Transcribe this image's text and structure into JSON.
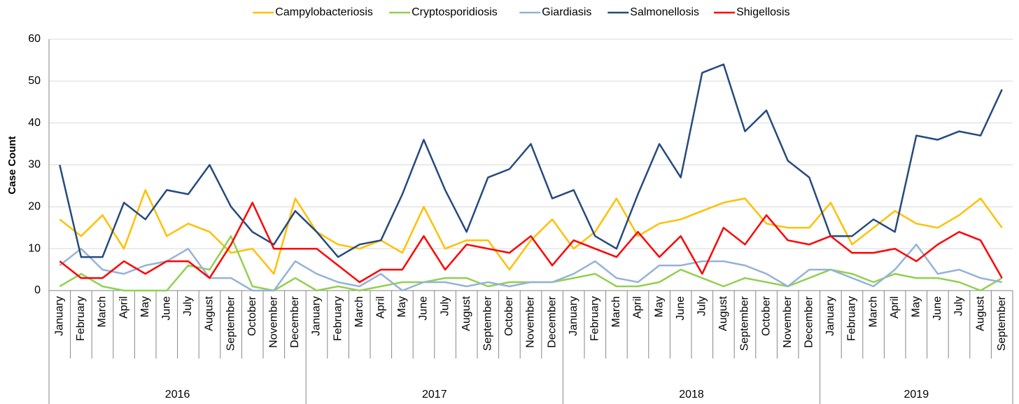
{
  "chart_data": {
    "type": "line",
    "y_label": "Case Count",
    "categories": [
      "January",
      "February",
      "March",
      "April",
      "May",
      "June",
      "July",
      "August",
      "September",
      "October",
      "November",
      "December",
      "January",
      "February",
      "March",
      "April",
      "May",
      "June",
      "July",
      "August",
      "September",
      "October",
      "November",
      "December",
      "January",
      "February",
      "March",
      "April",
      "May",
      "June",
      "July",
      "August",
      "September",
      "October",
      "November",
      "December",
      "January",
      "February",
      "March",
      "April",
      "May",
      "June",
      "July",
      "August",
      "September"
    ],
    "year_labels": [
      "2016",
      "2017",
      "2018",
      "2019"
    ],
    "ylim": [
      0,
      60
    ],
    "yticks": [
      0,
      10,
      20,
      30,
      40,
      50,
      60
    ],
    "grid": true,
    "legend": "top",
    "series": [
      {
        "name": "Campylobacteriosis",
        "color": "#ffc000",
        "values": [
          17,
          13,
          18,
          10,
          24,
          13,
          16,
          14,
          9,
          10,
          4,
          22,
          14,
          11,
          10,
          12,
          9,
          20,
          10,
          12,
          12,
          5,
          12,
          17,
          10,
          14,
          22,
          13,
          16,
          17,
          19,
          21,
          22,
          16,
          15,
          15,
          21,
          11,
          15,
          19,
          16,
          15,
          18,
          22,
          15
        ]
      },
      {
        "name": "Cryptosporidiosis",
        "color": "#92d050",
        "values": [
          1,
          4,
          1,
          0,
          0,
          0,
          6,
          5,
          13,
          1,
          0,
          3,
          0,
          1,
          0,
          1,
          2,
          2,
          3,
          3,
          1,
          2,
          2,
          2,
          3,
          4,
          1,
          1,
          2,
          5,
          3,
          1,
          3,
          2,
          1,
          3,
          5,
          4,
          2,
          4,
          3,
          3,
          2,
          0,
          3
        ]
      },
      {
        "name": "Giardiasis",
        "color": "#95b3d7",
        "values": [
          6,
          10,
          5,
          4,
          6,
          7,
          10,
          3,
          3,
          0,
          0,
          7,
          4,
          2,
          1,
          4,
          0,
          2,
          2,
          1,
          2,
          1,
          2,
          2,
          4,
          7,
          3,
          2,
          6,
          6,
          7,
          7,
          6,
          4,
          1,
          5,
          5,
          3,
          1,
          5,
          11,
          4,
          5,
          3,
          2
        ]
      },
      {
        "name": "Salmonellosis",
        "color": "#254a7d",
        "values": [
          30,
          8,
          8,
          21,
          17,
          24,
          23,
          30,
          20,
          14,
          11,
          19,
          14,
          8,
          11,
          12,
          23,
          36,
          24,
          14,
          27,
          29,
          35,
          22,
          24,
          13,
          10,
          23,
          35,
          27,
          52,
          54,
          38,
          43,
          31,
          27,
          13,
          13,
          17,
          14,
          37,
          36,
          38,
          37,
          48
        ]
      },
      {
        "name": "Shigellosis",
        "color": "#ff0000",
        "values": [
          7,
          3,
          3,
          7,
          4,
          7,
          7,
          3,
          11,
          21,
          10,
          10,
          10,
          6,
          2,
          5,
          5,
          13,
          5,
          11,
          10,
          9,
          13,
          6,
          12,
          10,
          8,
          14,
          8,
          13,
          4,
          15,
          11,
          18,
          12,
          11,
          13,
          9,
          9,
          10,
          7,
          11,
          14,
          12,
          3
        ]
      }
    ]
  }
}
